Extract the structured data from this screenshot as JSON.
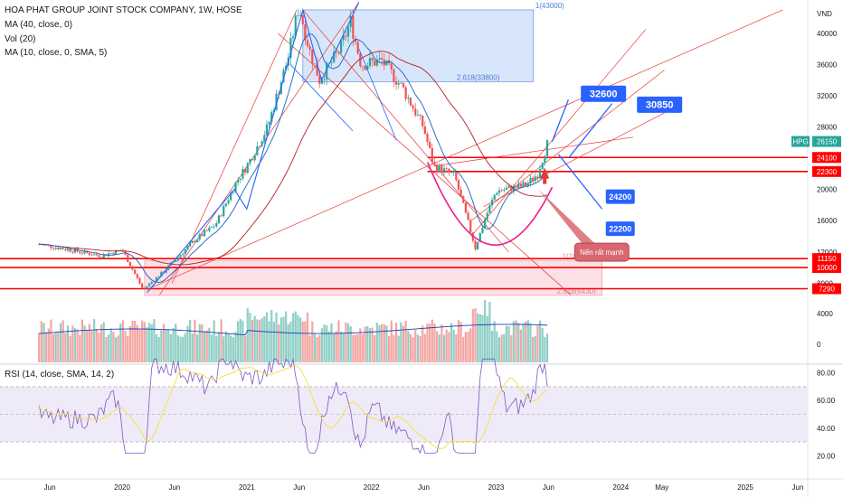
{
  "legend": {
    "title": "HOA PHAT GROUP JOINT STOCK COMPANY, 1W, HOSE",
    "ma40": "MA (40, close, 0)",
    "vol": "Vol (20)",
    "ma10": "MA (10, close, 0, SMA, 5)",
    "rsi": "RSI (14, close, SMA, 14, 2)"
  },
  "chart_data": {
    "type": "candlestick",
    "currency": "VND",
    "price_ticks": [
      40000,
      36000,
      32000,
      28000,
      24000,
      20000,
      16000,
      12000,
      8000
    ],
    "volume_ticks": [
      4000,
      0
    ],
    "rsi_ticks": [
      80.0,
      60.0,
      40.0,
      20.0
    ],
    "x_ticks": [
      "Jun",
      "2020",
      "Jun",
      "2021",
      "Jun",
      "2022",
      "Jun",
      "2023",
      "Jun",
      "2024",
      "May",
      "2025",
      "Jun"
    ],
    "price_path": [
      [
        "2019-05",
        13000
      ],
      [
        "2019-07",
        12500
      ],
      [
        "2019-09",
        12000
      ],
      [
        "2019-11",
        11500
      ],
      [
        "2020-01",
        12300
      ],
      [
        "2020-03",
        7200
      ],
      [
        "2020-05",
        9500
      ],
      [
        "2020-08",
        13500
      ],
      [
        "2020-10",
        15500
      ],
      [
        "2020-12",
        21000
      ],
      [
        "2021-01",
        23000
      ],
      [
        "2021-03",
        28000
      ],
      [
        "2021-05",
        37000
      ],
      [
        "2021-06",
        43500
      ],
      [
        "2021-07",
        38000
      ],
      [
        "2021-08",
        34000
      ],
      [
        "2021-10",
        38000
      ],
      [
        "2021-11",
        41500
      ],
      [
        "2021-12",
        36000
      ],
      [
        "2022-02",
        36500
      ],
      [
        "2022-04",
        33000
      ],
      [
        "2022-06",
        28000
      ],
      [
        "2022-07",
        23000
      ],
      [
        "2022-09",
        21800
      ],
      [
        "2022-11",
        12500
      ],
      [
        "2022-12",
        16500
      ],
      [
        "2023-01",
        19800
      ],
      [
        "2023-03",
        20300
      ],
      [
        "2023-04",
        20700
      ],
      [
        "2023-05",
        22000
      ],
      [
        "2023-06",
        26150
      ]
    ],
    "last_price": {
      "symbol": "HPG",
      "value": 26150
    },
    "horizontal_levels": [
      24100,
      22300,
      11150,
      10000,
      7290
    ],
    "targets": [
      32600,
      30850,
      24200,
      22200
    ],
    "fib_labels": [
      "1(43000)",
      "2.618(33800)",
      "1(10850)",
      "2.618(6430)"
    ],
    "annotation": "Nến rất mạnh",
    "rsi_last": 70
  },
  "colors": {
    "up": "#26a69a",
    "down": "#ef5350",
    "level": "#ff0000",
    "target_box": "#2962ff",
    "rsi": "#7e57c2",
    "rsi_ma": "#f5e04e",
    "ma40": "#b71c1c",
    "ma10": "#1565c0",
    "wedge": "#e91e8c"
  }
}
